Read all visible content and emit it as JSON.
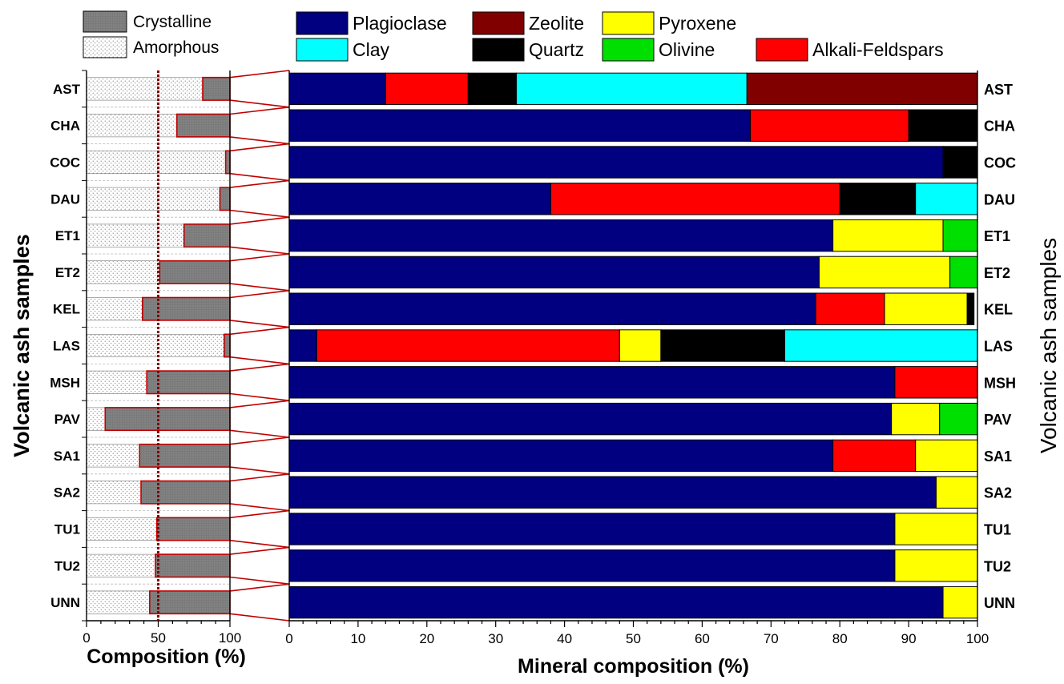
{
  "chart_data": [
    {
      "type": "bar",
      "stacked": true,
      "orientation": "horizontal",
      "categories": [
        "AST",
        "CHA",
        "COC",
        "DAU",
        "ET1",
        "ET2",
        "KEL",
        "LAS",
        "MSH",
        "PAV",
        "SA1",
        "SA2",
        "TU1",
        "TU2",
        "UNN"
      ],
      "series": [
        {
          "name": "Amorphous",
          "values": [
            81,
            63,
            97,
            93,
            68,
            51,
            39,
            96,
            42,
            13,
            37,
            38,
            49,
            48,
            44
          ]
        },
        {
          "name": "Crystalline",
          "values": [
            19,
            37,
            3,
            7,
            32,
            49,
            61,
            4,
            58,
            87,
            63,
            62,
            51,
            52,
            56
          ]
        }
      ],
      "xlabel": "Composition (%)",
      "ylabel": "Volcanic ash samples",
      "xlim": [
        0,
        100
      ],
      "xticks": [
        "0",
        "50",
        "100"
      ],
      "reference_line_x": 50,
      "legend": [
        "Crystalline",
        "Amorphous"
      ],
      "legend_position": "top"
    },
    {
      "type": "bar",
      "stacked": true,
      "orientation": "horizontal",
      "categories": [
        "AST",
        "CHA",
        "COC",
        "DAU",
        "ET1",
        "ET2",
        "KEL",
        "LAS",
        "MSH",
        "PAV",
        "SA1",
        "SA2",
        "TU1",
        "TU2",
        "UNN"
      ],
      "series": [
        {
          "name": "Plagioclase",
          "values": [
            14,
            67,
            95,
            38,
            79,
            77,
            76.5,
            4,
            88,
            87.5,
            79,
            94,
            88,
            88,
            95
          ]
        },
        {
          "name": "Alkali-Feldspars",
          "values": [
            12,
            23,
            0,
            42,
            0,
            0,
            10,
            44,
            12,
            0,
            12,
            0,
            0,
            0,
            0
          ]
        },
        {
          "name": "Pyroxene",
          "values": [
            0,
            0,
            0,
            0,
            16,
            19,
            12,
            6,
            0,
            7,
            9,
            6,
            12,
            12,
            5
          ]
        },
        {
          "name": "Olivine",
          "values": [
            0,
            0,
            0,
            0,
            5,
            4,
            0,
            0,
            0,
            5.5,
            0,
            0,
            0,
            0,
            0
          ]
        },
        {
          "name": "Quartz",
          "values": [
            7,
            10,
            5,
            11,
            0,
            0,
            1,
            18,
            0,
            0,
            0,
            0,
            0,
            0,
            0
          ]
        },
        {
          "name": "Clay",
          "values": [
            33.5,
            0,
            0,
            9,
            0,
            0,
            0,
            28,
            0,
            0,
            0,
            0,
            0,
            0,
            0
          ]
        },
        {
          "name": "Zeolite",
          "values": [
            33.5,
            0,
            0,
            0,
            0,
            0,
            0,
            0,
            0,
            0,
            0,
            0,
            0,
            0,
            0
          ]
        }
      ],
      "xlabel": "Mineral composition (%)",
      "ylabel": "Volcanic ash samples",
      "xlim": [
        0,
        100
      ],
      "xticks": [
        "0",
        "10",
        "20",
        "30",
        "40",
        "50",
        "60",
        "70",
        "80",
        "90",
        "100"
      ],
      "legend": [
        "Plagioclase",
        "Zeolite",
        "Pyroxene",
        "Clay",
        "Quartz",
        "Olivine",
        "Alkali-Feldspars"
      ],
      "legend_position": "top"
    }
  ],
  "colors": {
    "Plagioclase": "#000080",
    "Zeolite": "#800000",
    "Pyroxene": "#ffff00",
    "Clay": "#00ffff",
    "Quartz": "#000000",
    "Olivine": "#00e000",
    "Alkali-Feldspars": "#ff0000",
    "Crystalline": "#808080",
    "Amorphous": "#ffffff",
    "connector": "#c00000",
    "reference_line": "#800000"
  }
}
